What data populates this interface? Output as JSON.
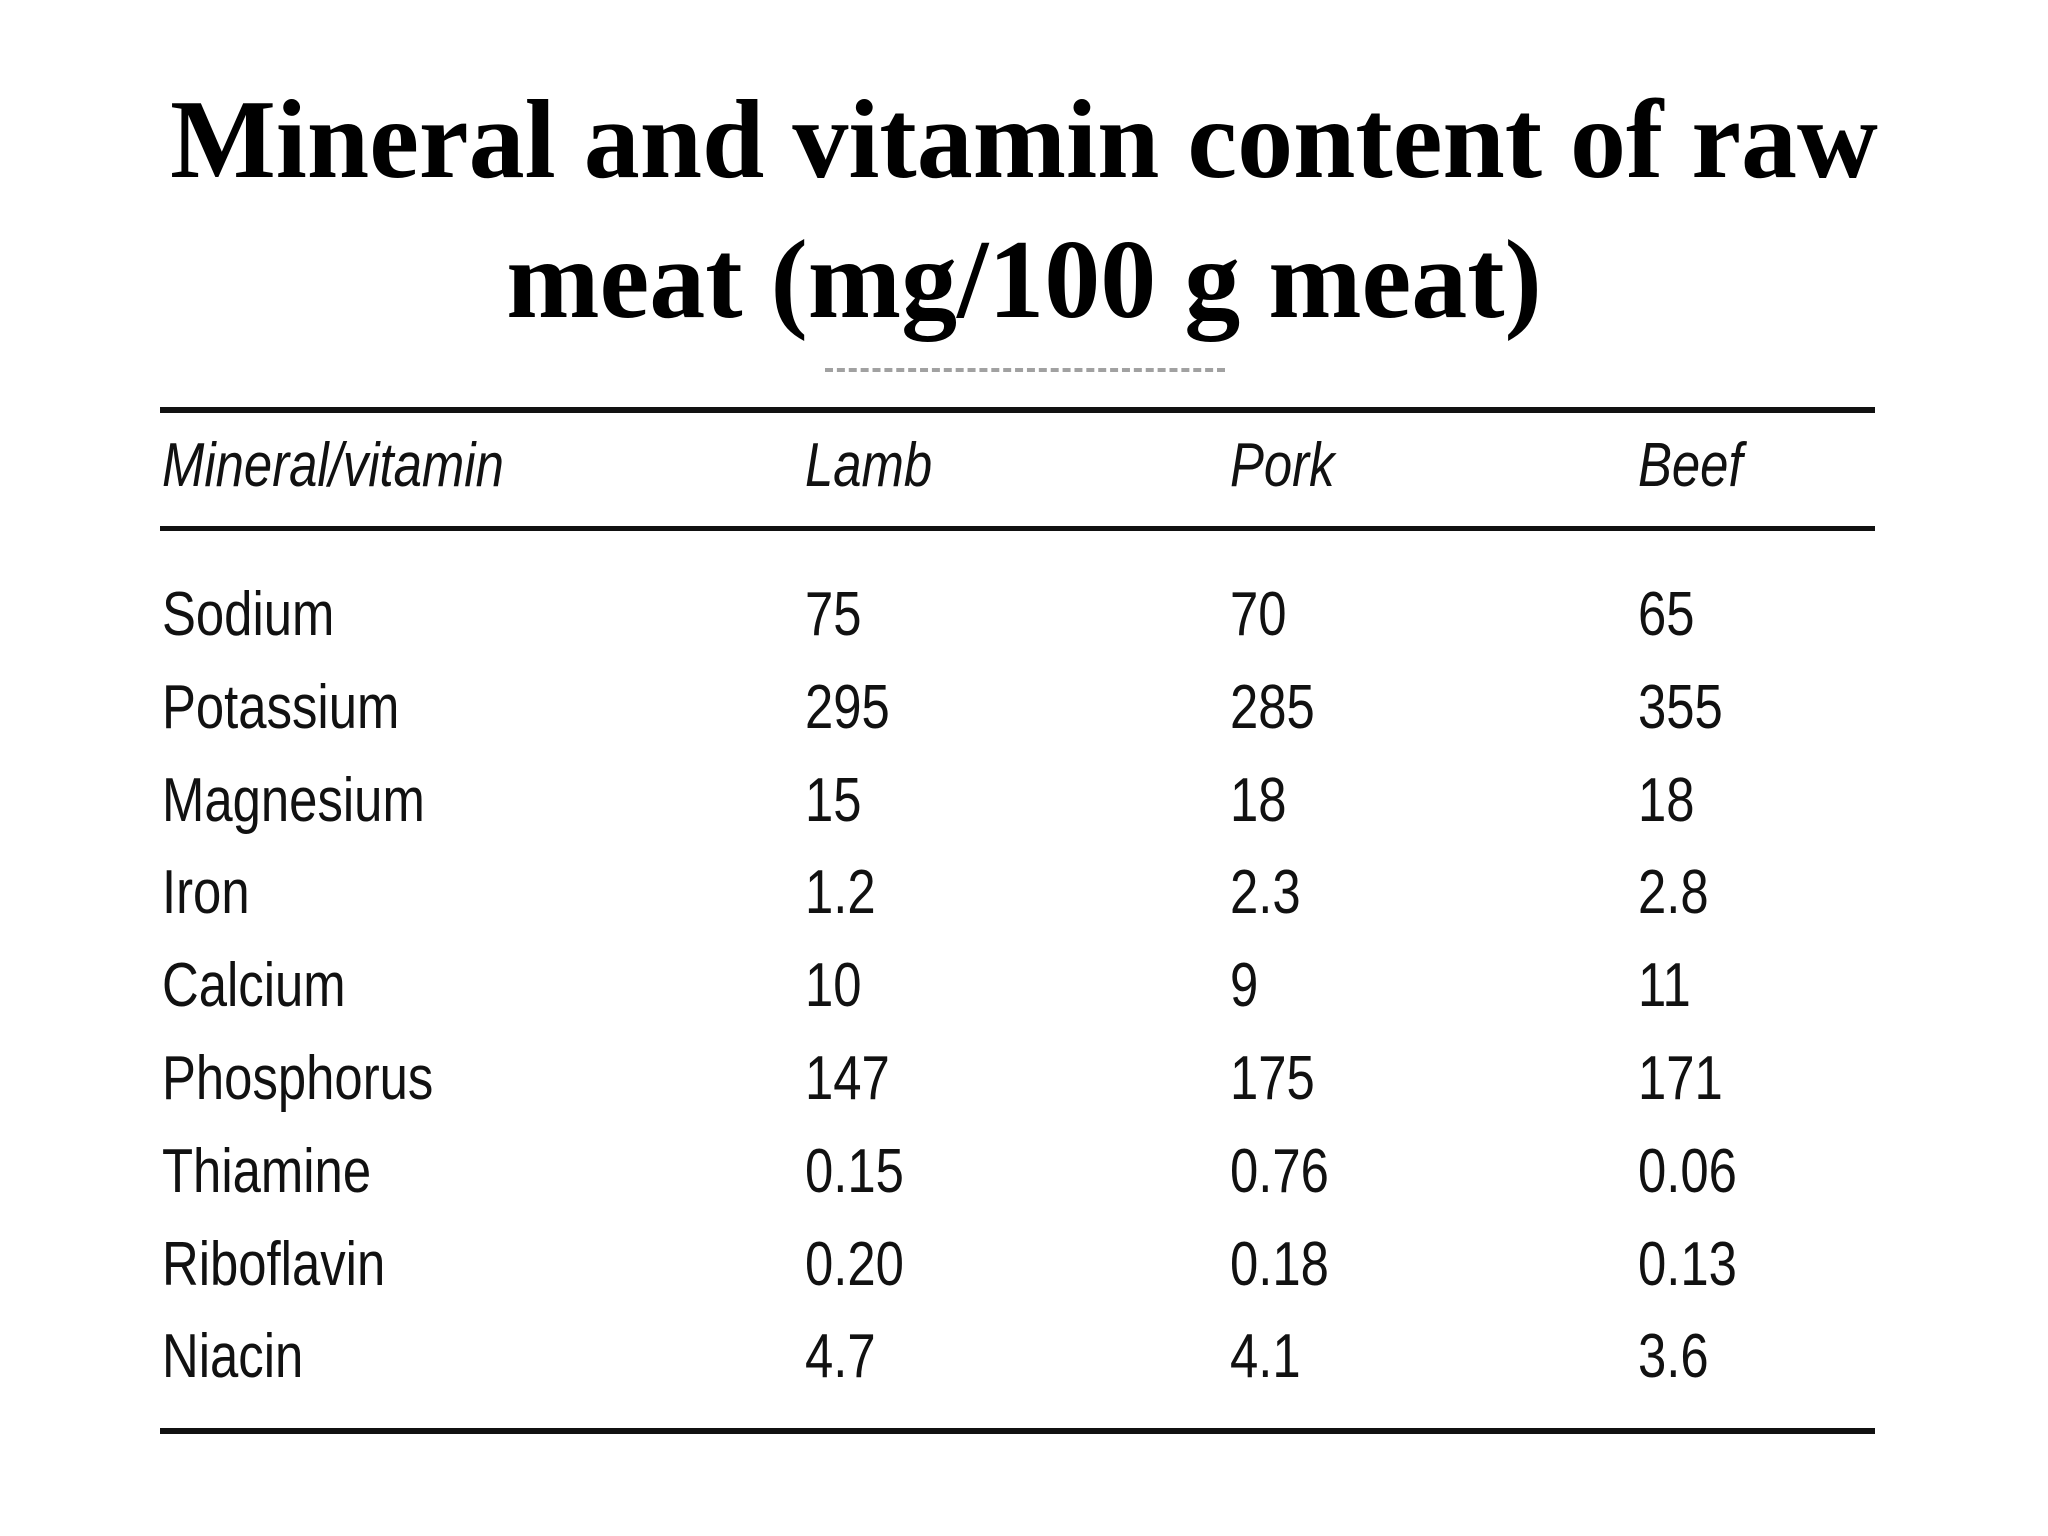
{
  "title": {
    "line1": "Mineral and vitamin content of raw",
    "line2": "meat (mg/100 g meat)"
  },
  "table": {
    "headers": [
      "Mineral/vitamin",
      "Lamb",
      "Pork",
      "Beef"
    ],
    "rows": [
      [
        "Sodium",
        "75",
        "70",
        "65"
      ],
      [
        "Potassium",
        "295",
        "285",
        "355"
      ],
      [
        "Magnesium",
        "15",
        "18",
        "18"
      ],
      [
        "Iron",
        "1.2",
        "2.3",
        "2.8"
      ],
      [
        "Calcium",
        "10",
        "9",
        "11"
      ],
      [
        "Phosphorus",
        "147",
        "175",
        "171"
      ],
      [
        "Thiamine",
        "0.15",
        "0.76",
        "0.06"
      ],
      [
        "Riboflavin",
        "0.20",
        "0.18",
        "0.13"
      ],
      [
        "Niacin",
        "4.7",
        "4.1",
        "3.6"
      ]
    ]
  }
}
